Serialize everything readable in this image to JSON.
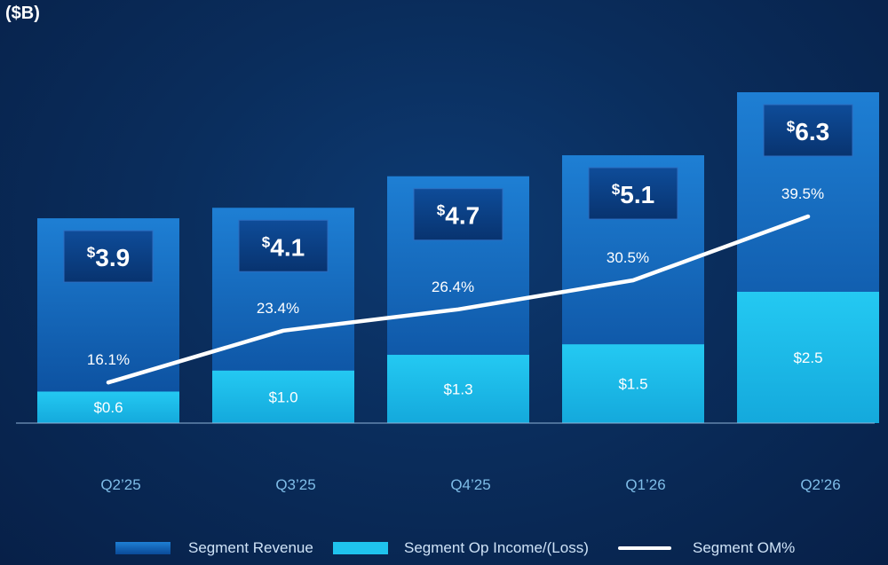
{
  "unit_label": "($B)",
  "colors": {
    "revenue_top": "#1e7fd4",
    "revenue_bottom": "#0a4a98",
    "op_income": "#1fc3ee",
    "om_line": "#ffffff",
    "callout_bg": "#0b3f85",
    "axis_text": "#7fbde8"
  },
  "chart_data": {
    "type": "bar",
    "stacked_overlay": true,
    "categories": [
      "Q2’25",
      "Q3’25",
      "Q4’25",
      "Q1’26",
      "Q2’26"
    ],
    "series": [
      {
        "name": "Segment Revenue",
        "type": "bar",
        "values": [
          3.9,
          4.1,
          4.7,
          5.1,
          6.3
        ],
        "labels": [
          "3.9",
          "4.1",
          "4.7",
          "5.1",
          "6.3"
        ],
        "currency_symbol": "$"
      },
      {
        "name": "Segment Op Income/(Loss)",
        "type": "bar",
        "values": [
          0.6,
          1.0,
          1.3,
          1.5,
          2.5
        ],
        "labels": [
          "$0.6",
          "$1.0",
          "$1.3",
          "$1.5",
          "$2.5"
        ]
      },
      {
        "name": "Segment OM%",
        "type": "line",
        "values": [
          16.1,
          23.4,
          26.4,
          30.5,
          39.5
        ],
        "labels": [
          "16.1%",
          "23.4%",
          "26.4%",
          "30.5%",
          "39.5%"
        ]
      }
    ],
    "ylim": [
      0,
      6.3
    ],
    "om_ylim": [
      0,
      60
    ],
    "legend": {
      "position": "bottom",
      "items": [
        "Segment Revenue",
        "Segment Op Income/(Loss)",
        "Segment OM%"
      ]
    }
  }
}
